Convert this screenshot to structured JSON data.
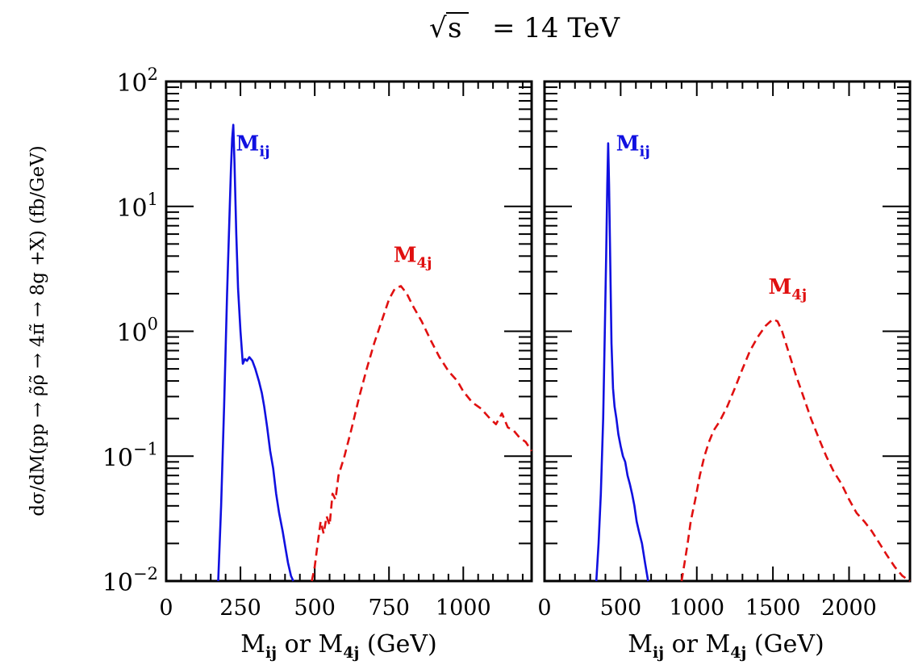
{
  "title_parts": {
    "sqrt": "√",
    "s": "s",
    "rest": "= 14 TeV"
  },
  "ylabel": "dσ/dM(pp → ρ̃ρ̃ → 4π̃ → 8g +X) (fb/GeV)",
  "colors": {
    "mij": "#1010e0",
    "m4j": "#e01010",
    "axis": "#000000"
  },
  "chart_data": [
    {
      "type": "line",
      "title": "√s = 14 TeV",
      "xlabel": "Mij or M4j (GeV)",
      "ylabel": "dσ/dM(pp → ρ̃ρ̃ → 4π̃ → 8g +X) (fb/GeV)",
      "xlim": [
        0,
        1230
      ],
      "ylim": [
        0.01,
        100
      ],
      "yscale": "log",
      "grid": false,
      "xticks": [
        0,
        250,
        500,
        750,
        1000
      ],
      "xtick_labels": [
        "0",
        "250",
        "500",
        "750",
        "1000"
      ],
      "yticks": [
        0.01,
        0.1,
        1,
        10,
        100
      ],
      "ytick_labels": [
        {
          "base": "10",
          "exp": "−2"
        },
        {
          "base": "10",
          "exp": "−1"
        },
        {
          "base": "10",
          "exp": "0"
        },
        {
          "base": "10",
          "exp": "1"
        },
        {
          "base": "10",
          "exp": "2"
        }
      ],
      "series": [
        {
          "name": "Mij",
          "style": "solid",
          "label_at": [
            235,
            28
          ],
          "x": [
            175,
            185,
            195,
            205,
            212,
            218,
            222,
            226,
            230,
            236,
            242,
            250,
            258,
            265,
            272,
            280,
            290,
            300,
            312,
            322,
            330,
            340,
            350,
            360,
            370,
            380,
            392,
            402,
            410,
            420,
            428
          ],
          "y": [
            0.01,
            0.04,
            0.25,
            2.0,
            7.0,
            20,
            35,
            45,
            22,
            6.0,
            2.2,
            1.0,
            0.55,
            0.6,
            0.58,
            0.62,
            0.58,
            0.5,
            0.4,
            0.32,
            0.25,
            0.17,
            0.11,
            0.08,
            0.05,
            0.035,
            0.025,
            0.018,
            0.014,
            0.011,
            0.01
          ]
        },
        {
          "name": "M4j",
          "style": "dashed",
          "label_at": [
            765,
            3.6
          ],
          "x": [
            490,
            500,
            510,
            520,
            530,
            540,
            550,
            560,
            570,
            580,
            600,
            625,
            650,
            675,
            700,
            725,
            750,
            770,
            790,
            810,
            830,
            860,
            890,
            920,
            950,
            980,
            1000,
            1030,
            1060,
            1090,
            1110,
            1130,
            1150,
            1170,
            1190,
            1210,
            1230
          ],
          "y": [
            0.01,
            0.013,
            0.02,
            0.03,
            0.024,
            0.033,
            0.028,
            0.05,
            0.045,
            0.07,
            0.1,
            0.17,
            0.3,
            0.5,
            0.8,
            1.2,
            1.8,
            2.2,
            2.3,
            2.0,
            1.6,
            1.2,
            0.85,
            0.62,
            0.48,
            0.4,
            0.33,
            0.27,
            0.24,
            0.2,
            0.18,
            0.22,
            0.17,
            0.16,
            0.14,
            0.13,
            0.11
          ]
        }
      ]
    },
    {
      "type": "line",
      "title": "√s = 14 TeV",
      "xlabel": "Mij or M4j (GeV)",
      "ylim": [
        0.01,
        100
      ],
      "yscale": "log",
      "xlim": [
        0,
        2400
      ],
      "grid": false,
      "xticks": [
        0,
        500,
        1000,
        1500,
        2000
      ],
      "xtick_labels": [
        "0",
        "500",
        "1000",
        "1500",
        "2000"
      ],
      "series": [
        {
          "name": "Mij",
          "style": "solid",
          "label_at": [
            470,
            28
          ],
          "x": [
            340,
            355,
            370,
            385,
            395,
            405,
            412,
            418,
            424,
            432,
            440,
            450,
            460,
            472,
            485,
            500,
            515,
            530,
            545,
            560,
            575,
            590,
            605,
            620,
            640,
            660,
            680
          ],
          "y": [
            0.01,
            0.02,
            0.05,
            0.2,
            0.9,
            4.0,
            15,
            32,
            15,
            3.5,
            0.8,
            0.35,
            0.25,
            0.2,
            0.15,
            0.12,
            0.1,
            0.09,
            0.07,
            0.06,
            0.05,
            0.04,
            0.03,
            0.025,
            0.02,
            0.014,
            0.01
          ]
        },
        {
          "name": "M4j",
          "style": "dashed",
          "label_at": [
            1470,
            2.0
          ],
          "x": [
            900,
            920,
            940,
            960,
            990,
            1020,
            1050,
            1080,
            1110,
            1150,
            1200,
            1250,
            1300,
            1350,
            1400,
            1450,
            1500,
            1530,
            1560,
            1600,
            1650,
            1700,
            1750,
            1800,
            1850,
            1900,
            1950,
            2000,
            2050,
            2100,
            2150,
            2200,
            2250,
            2300,
            2350,
            2400
          ],
          "y": [
            0.01,
            0.014,
            0.02,
            0.03,
            0.045,
            0.07,
            0.1,
            0.13,
            0.16,
            0.19,
            0.25,
            0.35,
            0.5,
            0.7,
            0.9,
            1.1,
            1.25,
            1.2,
            1.0,
            0.7,
            0.45,
            0.3,
            0.2,
            0.14,
            0.1,
            0.075,
            0.06,
            0.045,
            0.035,
            0.03,
            0.025,
            0.02,
            0.016,
            0.013,
            0.011,
            0.009
          ]
        }
      ]
    }
  ]
}
